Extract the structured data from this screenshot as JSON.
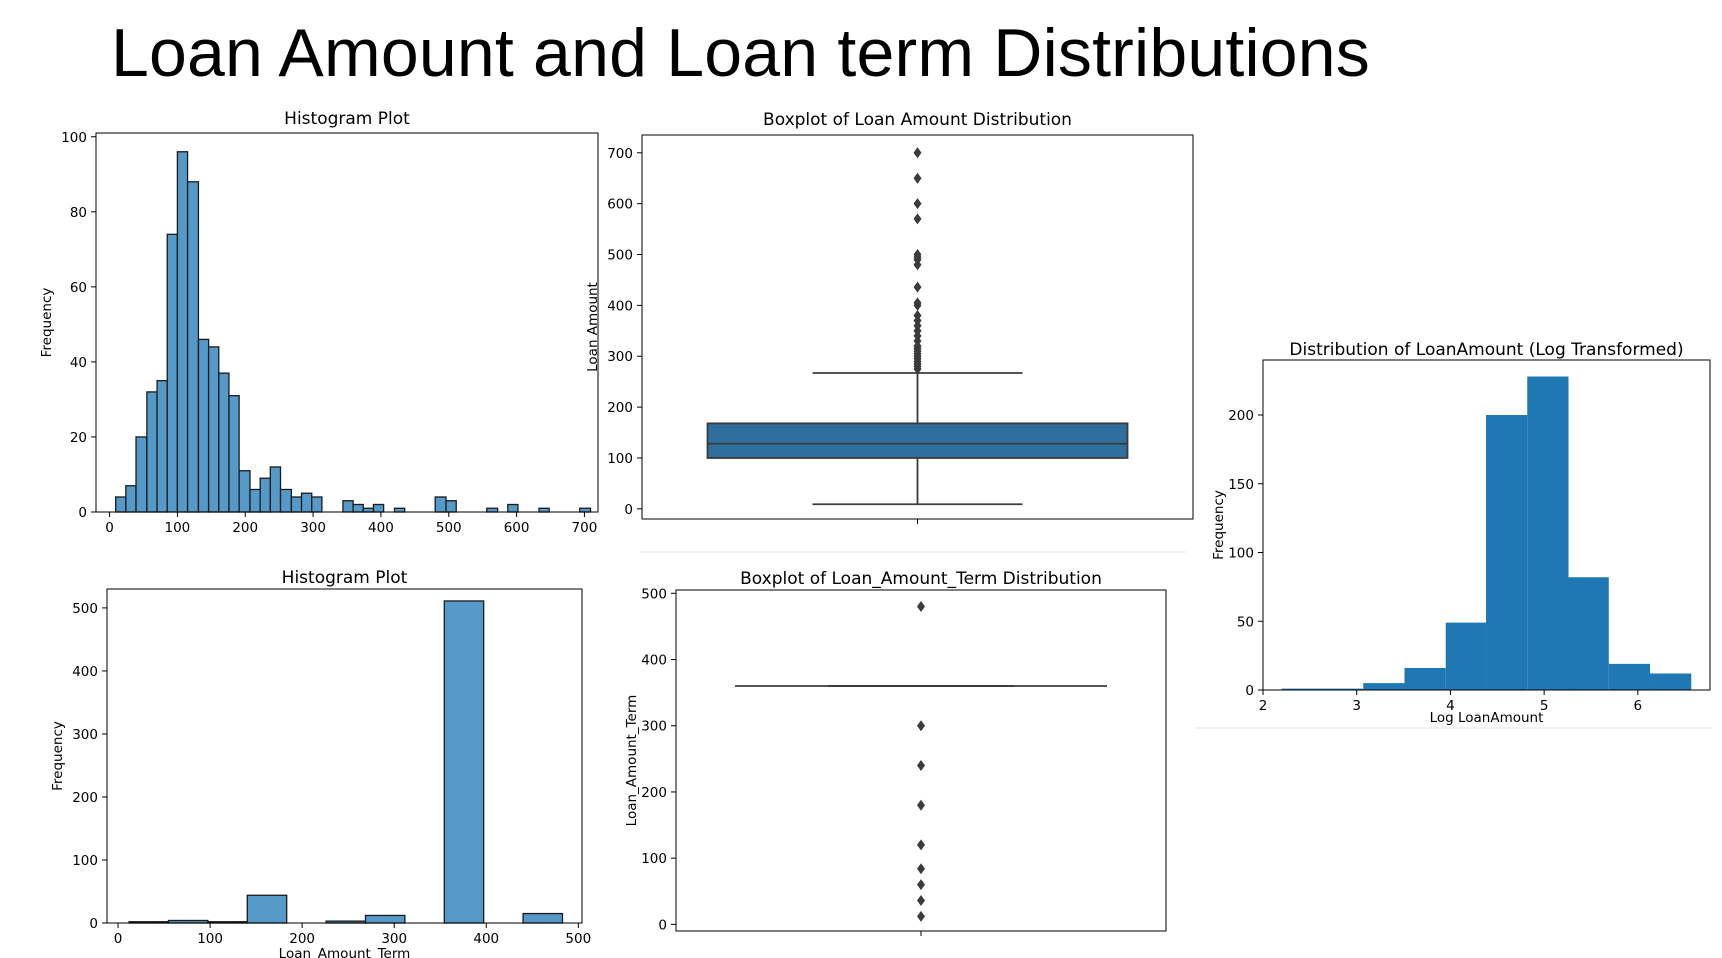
{
  "slide_title": "Loan Amount and Loan term Distributions",
  "chart_data": [
    {
      "type": "bar",
      "title": "Histogram Plot",
      "xlabel": "",
      "ylabel": "Frequency",
      "xlim": [
        -20,
        720
      ],
      "ylim": [
        0,
        101
      ],
      "xticks": [
        0,
        100,
        200,
        300,
        400,
        500,
        600,
        700
      ],
      "yticks": [
        0,
        20,
        40,
        60,
        80,
        100
      ],
      "bins": [
        [
          9,
          24,
          4
        ],
        [
          24,
          39,
          7
        ],
        [
          39,
          55,
          20
        ],
        [
          55,
          70,
          32
        ],
        [
          70,
          85,
          35
        ],
        [
          85,
          100,
          74
        ],
        [
          100,
          115,
          96
        ],
        [
          115,
          131,
          88
        ],
        [
          131,
          146,
          46
        ],
        [
          146,
          161,
          44
        ],
        [
          161,
          176,
          37
        ],
        [
          176,
          191,
          31
        ],
        [
          191,
          207,
          11
        ],
        [
          207,
          222,
          6
        ],
        [
          222,
          237,
          9
        ],
        [
          237,
          252,
          12
        ],
        [
          252,
          268,
          6
        ],
        [
          268,
          283,
          4
        ],
        [
          283,
          298,
          5
        ],
        [
          298,
          313,
          4
        ],
        [
          313,
          328,
          0
        ],
        [
          328,
          344,
          0
        ],
        [
          344,
          359,
          3
        ],
        [
          359,
          374,
          2
        ],
        [
          374,
          389,
          1
        ],
        [
          389,
          404,
          2
        ],
        [
          404,
          420,
          0
        ],
        [
          420,
          435,
          1
        ],
        [
          435,
          450,
          0
        ],
        [
          450,
          465,
          0
        ],
        [
          465,
          480,
          0
        ],
        [
          480,
          496,
          4
        ],
        [
          496,
          511,
          3
        ],
        [
          511,
          526,
          0
        ],
        [
          526,
          541,
          0
        ],
        [
          541,
          556,
          0
        ],
        [
          556,
          572,
          1
        ],
        [
          572,
          587,
          0
        ],
        [
          587,
          602,
          2
        ],
        [
          602,
          617,
          0
        ],
        [
          617,
          633,
          0
        ],
        [
          633,
          648,
          1
        ],
        [
          648,
          663,
          0
        ],
        [
          663,
          678,
          0
        ],
        [
          678,
          693,
          0
        ],
        [
          693,
          709,
          1
        ]
      ]
    },
    {
      "type": "boxplot",
      "title": "Boxplot of Loan Amount Distribution",
      "ylabel": "Loan Amount",
      "ylim": [
        -20,
        735
      ],
      "yticks": [
        0,
        100,
        200,
        300,
        400,
        500,
        600,
        700
      ],
      "whisker_low": 9,
      "q1": 100,
      "median": 128,
      "q3": 168,
      "whisker_high": 267,
      "outliers": [
        275,
        280,
        285,
        290,
        295,
        300,
        305,
        310,
        315,
        320,
        330,
        340,
        350,
        360,
        370,
        380,
        400,
        405,
        436,
        480,
        490,
        495,
        500,
        570,
        600,
        650,
        700
      ]
    },
    {
      "type": "bar",
      "title": "Distribution of LoanAmount (Log Transformed)",
      "xlabel": "Log LoanAmount",
      "ylabel": "Frequency",
      "xlim": [
        2,
        6.77
      ],
      "ylim": [
        0,
        240
      ],
      "xticks": [
        2,
        3,
        4,
        5,
        6
      ],
      "yticks": [
        0,
        50,
        100,
        150,
        200
      ],
      "bins": [
        [
          2.2,
          2.64,
          1
        ],
        [
          2.64,
          3.07,
          1
        ],
        [
          3.07,
          3.51,
          5
        ],
        [
          3.51,
          3.95,
          16
        ],
        [
          3.95,
          4.38,
          49
        ],
        [
          4.38,
          4.82,
          200
        ],
        [
          4.82,
          5.26,
          228
        ],
        [
          5.26,
          5.69,
          82
        ],
        [
          5.69,
          6.13,
          19
        ],
        [
          6.13,
          6.57,
          12
        ]
      ]
    },
    {
      "type": "bar",
      "title": "Histogram Plot",
      "xlabel": "Loan_Amount_Term",
      "ylabel": "Frequency",
      "xlim": [
        -12,
        504
      ],
      "ylim": [
        0,
        530
      ],
      "xticks": [
        0,
        100,
        200,
        300,
        400,
        500
      ],
      "yticks": [
        0,
        100,
        200,
        300,
        400,
        500
      ],
      "bins": [
        [
          12,
          54.8,
          2
        ],
        [
          54.8,
          97.6,
          4
        ],
        [
          97.6,
          140.4,
          2
        ],
        [
          140.4,
          183.2,
          44
        ],
        [
          183.2,
          226,
          0
        ],
        [
          226,
          268.8,
          3
        ],
        [
          268.8,
          311.6,
          12
        ],
        [
          311.6,
          354.4,
          0
        ],
        [
          354.4,
          397.2,
          511
        ],
        [
          397.2,
          440,
          0
        ],
        [
          440,
          482.8,
          15
        ]
      ]
    },
    {
      "type": "boxplot",
      "title": "Boxplot of Loan_Amount_Term Distribution",
      "ylabel": "Loan_Amount_Term",
      "ylim": [
        -10,
        505
      ],
      "yticks": [
        0,
        100,
        200,
        300,
        400,
        500
      ],
      "whisker_low": 360,
      "q1": 360,
      "median": 360,
      "q3": 360,
      "whisker_high": 360,
      "outliers": [
        12,
        36,
        60,
        84,
        120,
        180,
        240,
        300,
        480
      ]
    }
  ]
}
